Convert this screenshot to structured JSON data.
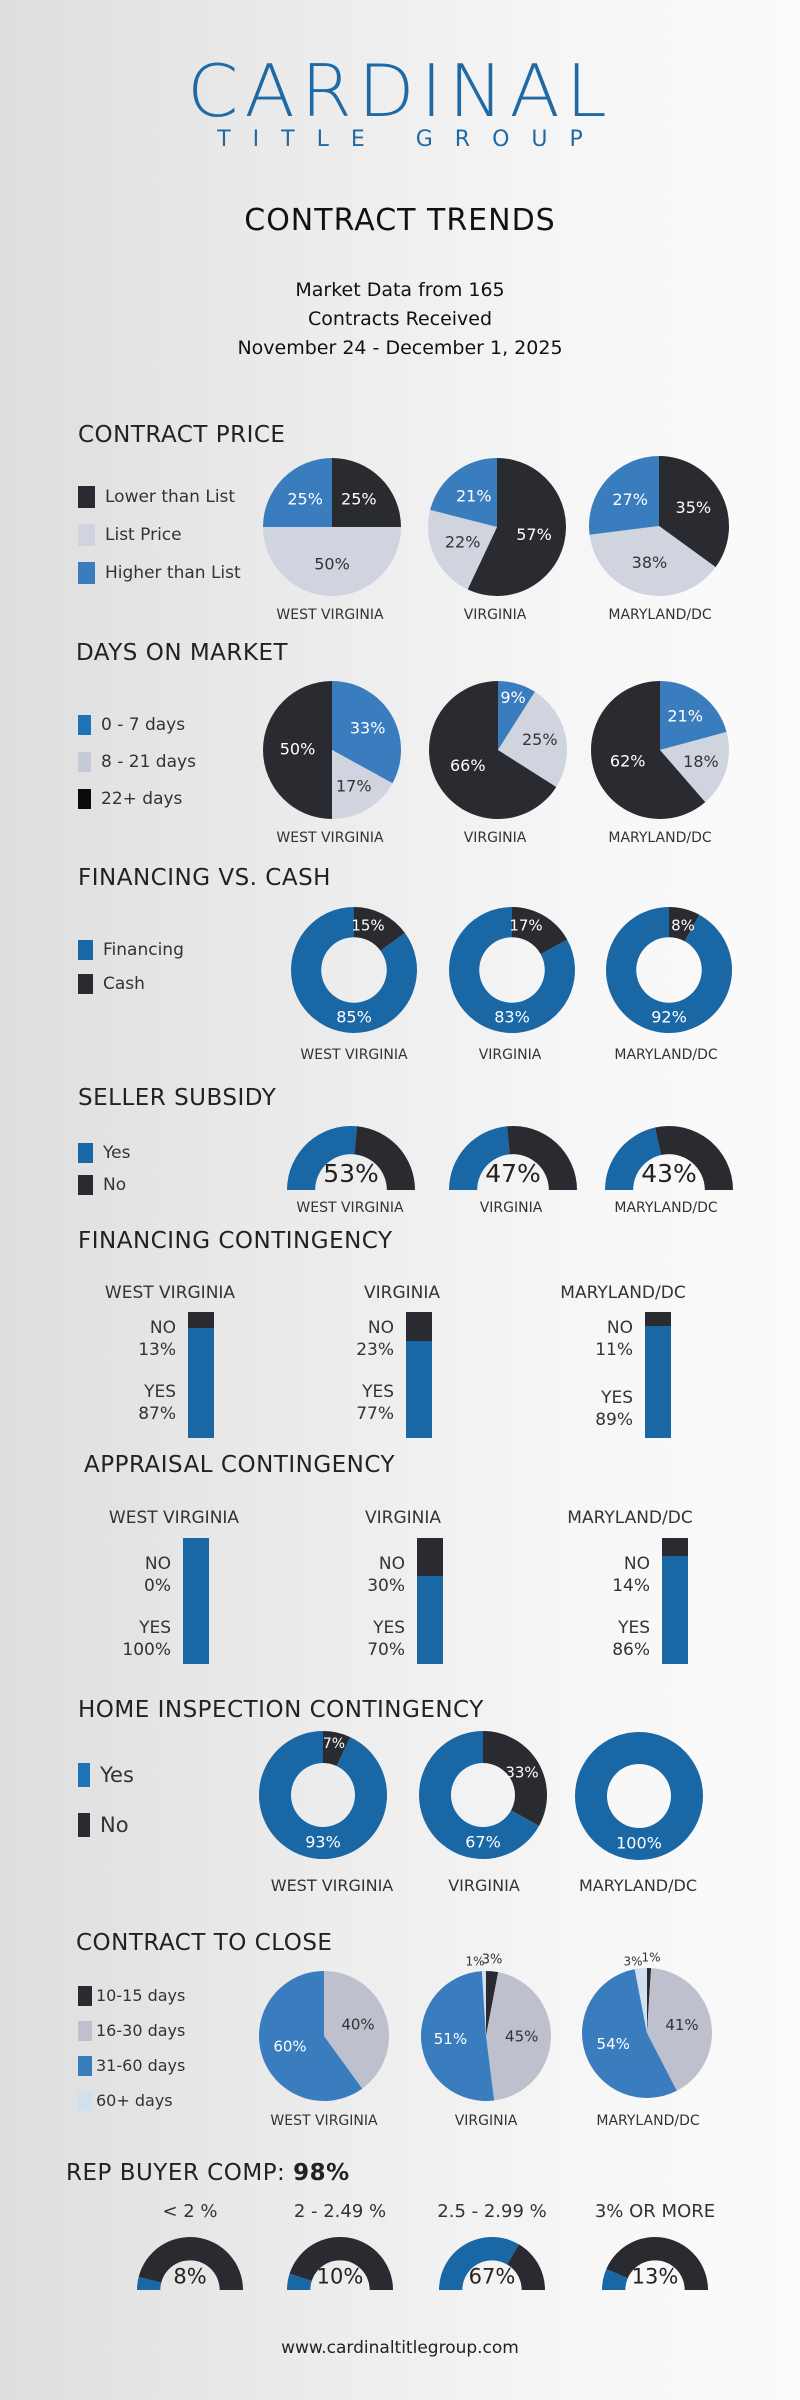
{
  "header": {
    "logo_main": "CARDINAL",
    "logo_sub": "TITLE GROUP",
    "title": "CONTRACT TRENDS",
    "subtitle_lines": [
      "Market Data from 165",
      "Contracts Received",
      "November 24 - December 1, 2025"
    ]
  },
  "colors": {
    "dark": "#2a2b30",
    "blue": "#3a7dbf",
    "deep_blue": "#1a67a5",
    "light_gray": "#d0d4df",
    "mid_gray": "#bec1cd",
    "pale_blue": "#cfe0ef",
    "brand": "#1f6aa5"
  },
  "states": [
    "WEST VIRGINIA",
    "VIRGINIA",
    "MARYLAND/DC"
  ],
  "footer": {
    "url": "www.cardinaltitlegroup.com"
  },
  "chart_data": [
    {
      "id": "contract_price",
      "type": "pie",
      "title": "CONTRACT PRICE",
      "legend": [
        "Lower than List",
        "List Price",
        "Higher than List"
      ],
      "categories": [
        "WEST VIRGINIA",
        "VIRGINIA",
        "MARYLAND/DC"
      ],
      "series": [
        {
          "name": "Lower than List",
          "values": [
            25,
            57,
            35
          ]
        },
        {
          "name": "List Price",
          "values": [
            50,
            22,
            38
          ]
        },
        {
          "name": "Higher than List",
          "values": [
            25,
            21,
            27
          ]
        }
      ]
    },
    {
      "id": "days_on_market",
      "type": "pie",
      "title": "DAYS ON MARKET",
      "legend": [
        "0 - 7 days",
        "8 - 21 days",
        "22+ days"
      ],
      "categories": [
        "WEST VIRGINIA",
        "VIRGINIA",
        "MARYLAND/DC"
      ],
      "series": [
        {
          "name": "0 - 7 days",
          "values": [
            33,
            9,
            21
          ]
        },
        {
          "name": "8 - 21 days",
          "values": [
            17,
            25,
            18
          ]
        },
        {
          "name": "22+ days",
          "values": [
            50,
            66,
            62
          ]
        }
      ]
    },
    {
      "id": "financing_vs_cash",
      "type": "pie",
      "subtype": "donut",
      "title": "FINANCING VS. CASH",
      "legend": [
        "Financing",
        "Cash"
      ],
      "categories": [
        "WEST VIRGINIA",
        "VIRGINIA",
        "MARYLAND/DC"
      ],
      "series": [
        {
          "name": "Cash",
          "values": [
            15,
            17,
            8
          ]
        },
        {
          "name": "Financing",
          "values": [
            85,
            83,
            92
          ]
        }
      ]
    },
    {
      "id": "seller_subsidy",
      "type": "pie",
      "subtype": "half-donut",
      "title": "SELLER SUBSIDY",
      "legend": [
        "Yes",
        "No"
      ],
      "categories": [
        "WEST VIRGINIA",
        "VIRGINIA",
        "MARYLAND/DC"
      ],
      "series": [
        {
          "name": "Yes",
          "values": [
            53,
            47,
            43
          ]
        },
        {
          "name": "No",
          "values": [
            47,
            53,
            57
          ]
        }
      ]
    },
    {
      "id": "financing_contingency",
      "type": "bar",
      "subtype": "stacked-100",
      "title": "FINANCING CONTINGENCY",
      "categories": [
        "WEST VIRGINIA",
        "VIRGINIA",
        "MARYLAND/DC"
      ],
      "series": [
        {
          "name": "NO",
          "values": [
            13,
            23,
            11
          ]
        },
        {
          "name": "YES",
          "values": [
            87,
            77,
            89
          ]
        }
      ]
    },
    {
      "id": "appraisal_contingency",
      "type": "bar",
      "subtype": "stacked-100",
      "title": "APPRAISAL CONTINGENCY",
      "categories": [
        "WEST VIRGINIA",
        "VIRGINIA",
        "MARYLAND/DC"
      ],
      "series": [
        {
          "name": "NO",
          "values": [
            0,
            30,
            14
          ]
        },
        {
          "name": "YES",
          "values": [
            100,
            70,
            86
          ]
        }
      ]
    },
    {
      "id": "home_inspection_contingency",
      "type": "pie",
      "subtype": "donut",
      "title": "HOME INSPECTION CONTINGENCY",
      "legend": [
        "Yes",
        "No"
      ],
      "categories": [
        "WEST VIRGINIA",
        "VIRGINIA",
        "MARYLAND/DC"
      ],
      "series": [
        {
          "name": "No",
          "values": [
            7,
            33,
            0
          ]
        },
        {
          "name": "Yes",
          "values": [
            93,
            67,
            100
          ]
        }
      ]
    },
    {
      "id": "contract_to_close",
      "type": "pie",
      "title": "CONTRACT TO CLOSE",
      "legend": [
        "10-15 days",
        "16-30 days",
        "31-60 days",
        "60+ days"
      ],
      "categories": [
        "WEST VIRGINIA",
        "VIRGINIA",
        "MARYLAND/DC"
      ],
      "series": [
        {
          "name": "10-15 days",
          "values": [
            0,
            3,
            1
          ]
        },
        {
          "name": "16-30 days",
          "values": [
            40,
            45,
            41
          ]
        },
        {
          "name": "31-60 days",
          "values": [
            60,
            51,
            54
          ]
        },
        {
          "name": "60+ days",
          "values": [
            0,
            1,
            3
          ]
        }
      ]
    },
    {
      "id": "rep_buyer_comp",
      "type": "pie",
      "subtype": "half-donut",
      "title": "REP BUYER COMP:",
      "title_value": "98%",
      "categories": [
        "< 2 %",
        "2 - 2.49 %",
        "2.5 - 2.99 %",
        "3% OR MORE"
      ],
      "values": [
        8,
        10,
        67,
        13
      ]
    }
  ]
}
